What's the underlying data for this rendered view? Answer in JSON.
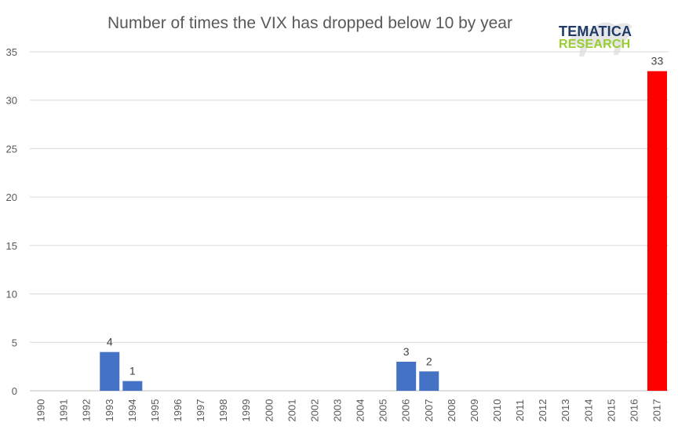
{
  "logo": {
    "line1": "TEMATICA",
    "line2": "RESEARCH",
    "colors": {
      "line1": "#1f3a68",
      "line2": "#9acd32"
    }
  },
  "chart_data": {
    "type": "bar",
    "title": "Number of times the VIX has dropped below 10 by year",
    "xlabel": "",
    "ylabel": "",
    "categories": [
      "1990",
      "1991",
      "1992",
      "1993",
      "1994",
      "1995",
      "1996",
      "1997",
      "1998",
      "1999",
      "2000",
      "2001",
      "2002",
      "2003",
      "2004",
      "2005",
      "2006",
      "2007",
      "2008",
      "2009",
      "2010",
      "2011",
      "2012",
      "2013",
      "2014",
      "2015",
      "2016",
      "2017"
    ],
    "values": [
      0,
      0,
      0,
      4,
      1,
      0,
      0,
      0,
      0,
      0,
      0,
      0,
      0,
      0,
      0,
      0,
      3,
      2,
      0,
      0,
      0,
      0,
      0,
      0,
      0,
      0,
      0,
      33
    ],
    "data_labels": {
      "1993": "4",
      "1994": "1",
      "2006": "3",
      "2007": "2",
      "2017": "33"
    },
    "ylim": [
      0,
      35
    ],
    "yticks": [
      0,
      5,
      10,
      15,
      20,
      25,
      30,
      35
    ],
    "grid": true,
    "colors": {
      "default": "#4472c4",
      "highlight": "#ff0000",
      "highlight_category": "2017"
    }
  }
}
